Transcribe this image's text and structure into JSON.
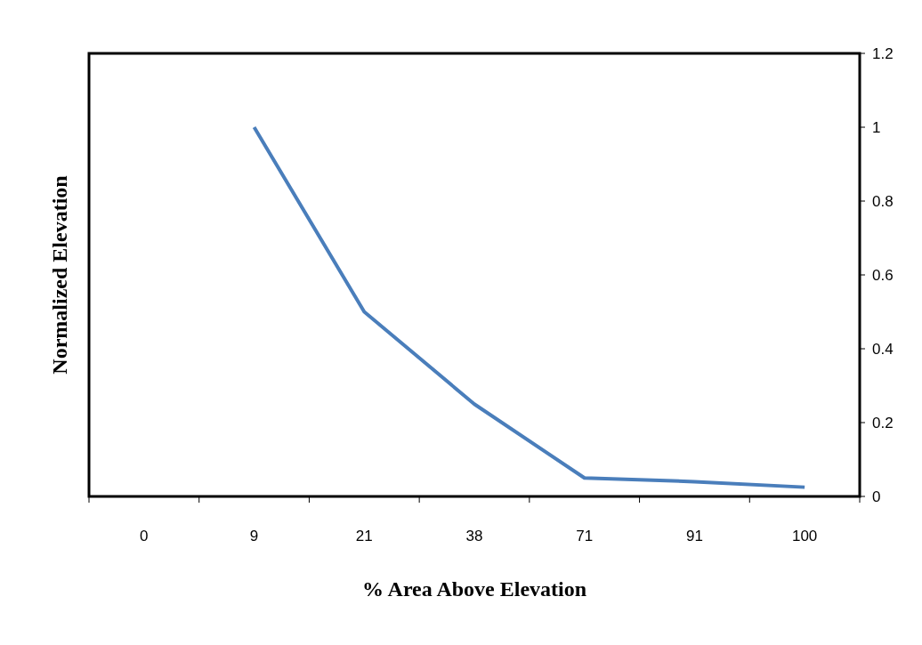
{
  "chart_data": {
    "type": "line",
    "xlabel": "% Area Above Elevation",
    "ylabel": "Normalized Elevation",
    "categories": [
      "0",
      "9",
      "21",
      "38",
      "71",
      "91",
      "100"
    ],
    "series": [
      {
        "color": "#4a7ebb",
        "values": [
          null,
          1,
          0.5,
          0.25,
          0.05,
          0.04,
          0.025
        ]
      }
    ],
    "ylim": [
      0,
      1.2
    ],
    "yticks": [
      0,
      0.2,
      0.4,
      0.6,
      0.8,
      1,
      1.2
    ],
    "grid": false,
    "marker": "none",
    "line_style": "solid"
  }
}
